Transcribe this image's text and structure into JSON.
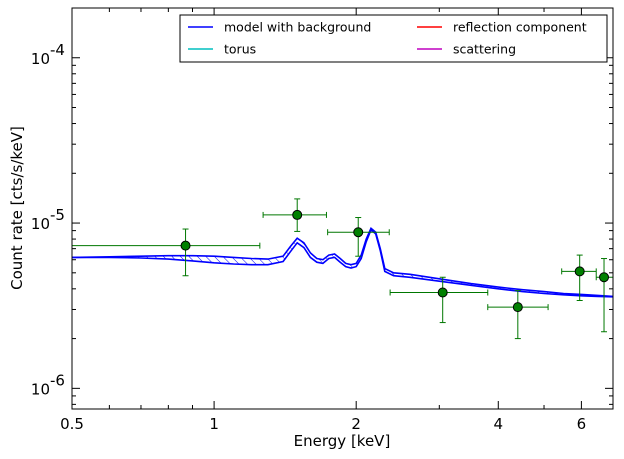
{
  "chart_data": {
    "type": "scatter",
    "xlabel": "Energy [keV]",
    "ylabel": "Count rate [cts/s/keV]",
    "x_scale": "log",
    "y_scale": "log",
    "xlim": [
      0.5,
      7.0
    ],
    "ylim": [
      7.5e-07,
      0.0002
    ],
    "x_ticks": [
      {
        "value": 0.5,
        "label": "0.5"
      },
      {
        "value": 1,
        "label": "1"
      },
      {
        "value": 2,
        "label": "2"
      },
      {
        "value": 4,
        "label": "4"
      },
      {
        "value": 6,
        "label": "6"
      }
    ],
    "y_ticks": [
      {
        "value": 1e-06,
        "label": "10",
        "exp": "-6"
      },
      {
        "value": 1e-05,
        "label": "10",
        "exp": "-5"
      },
      {
        "value": 0.0001,
        "label": "10",
        "exp": "-4"
      }
    ],
    "legend": {
      "placement": "top-right",
      "entries": [
        {
          "name": "model with background",
          "color": "#0000ff"
        },
        {
          "name": "reflection component",
          "color": "#ff0000"
        },
        {
          "name": "torus",
          "color": "#00bfbf"
        },
        {
          "name": "scattering",
          "color": "#bf00bf"
        }
      ]
    },
    "colors": {
      "model": "#0000ff",
      "data": "#007700",
      "data_fill": "#008000"
    },
    "data_points": [
      {
        "x": 0.87,
        "y": 7.3e-06,
        "xlo": 0.5,
        "xhi": 1.25,
        "ylo": 4.8e-06,
        "yhi": 9.2e-06
      },
      {
        "x": 1.5,
        "y": 1.12e-05,
        "xlo": 1.27,
        "xhi": 1.73,
        "ylo": 8.9e-06,
        "yhi": 1.4e-05
      },
      {
        "x": 2.02,
        "y": 8.8e-06,
        "xlo": 1.74,
        "xhi": 2.35,
        "ylo": 6.3e-06,
        "yhi": 1.08e-05
      },
      {
        "x": 3.05,
        "y": 3.8e-06,
        "xlo": 2.36,
        "xhi": 3.8,
        "ylo": 2.5e-06,
        "yhi": 4.7e-06
      },
      {
        "x": 4.4,
        "y": 3.1e-06,
        "xlo": 3.8,
        "xhi": 5.1,
        "ylo": 2e-06,
        "yhi": 3.9e-06
      },
      {
        "x": 5.95,
        "y": 5.1e-06,
        "xlo": 5.45,
        "xhi": 6.45,
        "ylo": 3.4e-06,
        "yhi": 6.4e-06
      },
      {
        "x": 6.7,
        "y": 4.7e-06,
        "xlo": 6.45,
        "xhi": 7.0,
        "ylo": 2.2e-06,
        "yhi": 6.1e-06
      }
    ],
    "model_upper": {
      "x": [
        0.5,
        0.6,
        0.7,
        0.8,
        0.9,
        1.0,
        1.1,
        1.2,
        1.3,
        1.4,
        1.45,
        1.5,
        1.55,
        1.6,
        1.65,
        1.7,
        1.75,
        1.8,
        1.85,
        1.9,
        1.95,
        2.0,
        2.05,
        2.1,
        2.15,
        2.2,
        2.25,
        2.3,
        2.4,
        2.6,
        3.0,
        3.5,
        4.0,
        4.5,
        5.0,
        5.5,
        6.0,
        6.5,
        7.0
      ],
      "y": [
        6.2e-06,
        6.25e-06,
        6.3e-06,
        6.35e-06,
        6.35e-06,
        6.3e-06,
        6.2e-06,
        6.1e-06,
        6.05e-06,
        6.3e-06,
        7.2e-06,
        8.1e-06,
        7.6e-06,
        6.6e-06,
        6.1e-06,
        6e-06,
        6.4e-06,
        6.5e-06,
        6.1e-06,
        5.7e-06,
        5.6e-06,
        5.7e-06,
        6.4e-06,
        8e-06,
        9.3e-06,
        8.8e-06,
        7e-06,
        5.3e-06,
        5e-06,
        4.9e-06,
        4.6e-06,
        4.3e-06,
        4.1e-06,
        3.95e-06,
        3.85e-06,
        3.75e-06,
        3.7e-06,
        3.65e-06,
        3.6e-06
      ]
    },
    "model_lower": {
      "x": [
        0.5,
        0.6,
        0.7,
        0.8,
        0.9,
        1.0,
        1.1,
        1.2,
        1.3,
        1.4,
        1.45,
        1.5,
        1.55,
        1.6,
        1.65,
        1.7,
        1.75,
        1.8,
        1.85,
        1.9,
        1.95,
        2.0,
        2.05,
        2.1,
        2.15,
        2.2,
        2.25,
        2.3,
        2.4,
        2.6,
        3.0,
        3.5,
        4.0,
        4.5,
        5.0,
        5.5,
        6.0,
        6.5,
        7.0
      ],
      "y": [
        6.2e-06,
        6.2e-06,
        6.15e-06,
        6.05e-06,
        5.9e-06,
        5.75e-06,
        5.65e-06,
        5.6e-06,
        5.6e-06,
        5.85e-06,
        6.7e-06,
        7.6e-06,
        7.1e-06,
        6.2e-06,
        5.8e-06,
        5.7e-06,
        6.1e-06,
        6.2e-06,
        5.8e-06,
        5.45e-06,
        5.35e-06,
        5.45e-06,
        6.1e-06,
        7.7e-06,
        9.1e-06,
        8.6e-06,
        6.8e-06,
        5.1e-06,
        4.8e-06,
        4.7e-06,
        4.45e-06,
        4.2e-06,
        4e-06,
        3.85e-06,
        3.75e-06,
        3.68e-06,
        3.63e-06,
        3.6e-06,
        3.58e-06
      ]
    }
  }
}
